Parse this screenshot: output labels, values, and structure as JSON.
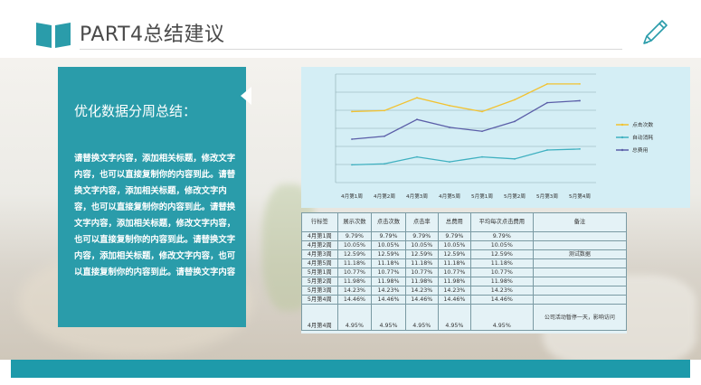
{
  "header": {
    "title": "PART4总结建议",
    "icons": {
      "left": "open-book-icon",
      "right": "pencil-icon"
    }
  },
  "panel": {
    "heading": "优化数据分周总结：",
    "body": "请替换文字内容，添加相关标题，修改文字内容，也可以直接复制你的内容到此。请替换文字内容，添加相关标题，修改文字内容，也可以直接复制你的内容到此。请替换文字内容，添加相关标题，修改文字内容，也可以直接复制你的内容到此。请替换文字内容，添加相关标题，修改文字内容，也可以直接复制你的内容到此。请替换文字内容"
  },
  "colors": {
    "accent": "#2a9caa",
    "bar": "#1e9aaa",
    "series1": "#f2c230",
    "series2": "#3fb0c0",
    "series3": "#5b5ea8"
  },
  "chart_data": {
    "type": "line",
    "categories": [
      "4月第1周",
      "4月第2周",
      "4月第3周",
      "4月第5周",
      "5月第1周",
      "5月第2周",
      "5月第3周",
      "5月第4周"
    ],
    "series": [
      {
        "name": "点击次数",
        "values": [
          72,
          73,
          86,
          78,
          72,
          84,
          100,
          100
        ]
      },
      {
        "name": "自动消耗",
        "values": [
          18,
          19,
          26,
          21,
          26,
          24,
          33,
          34
        ]
      },
      {
        "name": "总费用",
        "values": [
          44,
          47,
          64,
          56,
          52,
          62,
          81,
          83
        ]
      }
    ],
    "ylim": [
      0,
      110
    ],
    "grid": true,
    "legend": "right"
  },
  "table": {
    "headers": [
      "行标签",
      "展示次数",
      "点击次数",
      "点击率",
      "总费用",
      "平均每次点击费用",
      "备注"
    ],
    "rows": [
      [
        "4月第1周",
        "9.79%",
        "9.79%",
        "9.79%",
        "9.79%",
        "9.79%",
        ""
      ],
      [
        "4月第2周",
        "10.05%",
        "10.05%",
        "10.05%",
        "10.05%",
        "10.05%",
        ""
      ],
      [
        "4月第3周",
        "12.59%",
        "12.59%",
        "12.59%",
        "12.59%",
        "12.59%",
        "测试数据"
      ],
      [
        "4月第5周",
        "11.18%",
        "11.18%",
        "11.18%",
        "11.18%",
        "11.18%",
        ""
      ],
      [
        "5月第1周",
        "10.77%",
        "10.77%",
        "10.77%",
        "10.77%",
        "10.77%",
        ""
      ],
      [
        "5月第2周",
        "11.98%",
        "11.98%",
        "11.98%",
        "11.98%",
        "11.98%",
        ""
      ],
      [
        "5月第3周",
        "14.23%",
        "14.23%",
        "14.23%",
        "14.23%",
        "14.23%",
        ""
      ],
      [
        "5月第4周",
        "14.46%",
        "14.46%",
        "14.46%",
        "14.46%",
        "14.46%",
        ""
      ],
      [
        "4月第4周",
        "4.95%",
        "4.95%",
        "4.95%",
        "4.95%",
        "4.95%",
        "公司活动暂停一天，影响访问"
      ]
    ]
  }
}
